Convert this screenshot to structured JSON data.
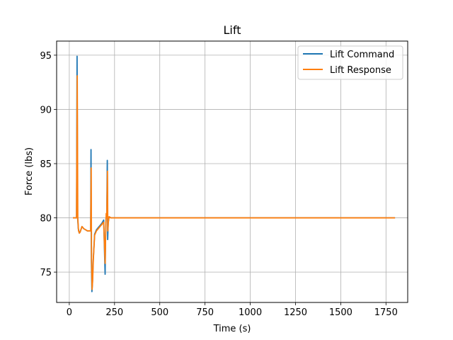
{
  "chart_data": {
    "type": "line",
    "title": "Lift",
    "xlabel": "Time (s)",
    "ylabel": "Force (lbs)",
    "xlim": [
      -70,
      1870
    ],
    "ylim": [
      72.2,
      96.3
    ],
    "xticks": [
      0,
      250,
      500,
      750,
      1000,
      1250,
      1500,
      1750
    ],
    "yticks": [
      75,
      80,
      85,
      90,
      95
    ],
    "grid": true,
    "legend_position": "top-right",
    "series": [
      {
        "name": "Lift Command",
        "color": "#1f77b4",
        "x": [
          20,
          40,
          43,
          46,
          50,
          55,
          60,
          70,
          80,
          90,
          100,
          110,
          118,
          120,
          122,
          125,
          128,
          132,
          140,
          150,
          160,
          170,
          180,
          190,
          198,
          200,
          203,
          207,
          210,
          212,
          215,
          220,
          230,
          240,
          250,
          500,
          1000,
          1500,
          1800
        ],
        "y": [
          80.0,
          80.0,
          94.9,
          80.0,
          79.0,
          78.6,
          78.7,
          79.2,
          79.0,
          78.9,
          78.8,
          78.8,
          78.8,
          86.3,
          76.0,
          73.2,
          74.0,
          76.0,
          78.5,
          78.9,
          79.1,
          79.3,
          79.5,
          79.8,
          74.8,
          78.0,
          80.0,
          80.2,
          85.3,
          78.0,
          79.5,
          80.1,
          80.0,
          80.0,
          80.0,
          80.0,
          80.0,
          80.0,
          80.0
        ]
      },
      {
        "name": "Lift Response",
        "color": "#ff7f0e",
        "x": [
          20,
          40,
          44,
          47,
          51,
          56,
          60,
          70,
          80,
          90,
          100,
          110,
          118,
          121,
          123,
          126,
          129,
          133,
          140,
          150,
          160,
          170,
          180,
          190,
          198,
          201,
          204,
          207,
          211,
          213,
          216,
          220,
          230,
          240,
          250,
          500,
          1000,
          1500,
          1800
        ],
        "y": [
          80.0,
          80.0,
          93.1,
          80.0,
          78.8,
          78.6,
          78.7,
          79.2,
          79.0,
          78.9,
          78.8,
          78.8,
          78.8,
          84.6,
          76.0,
          73.4,
          74.2,
          76.2,
          78.4,
          78.8,
          79.0,
          79.2,
          79.4,
          79.6,
          75.8,
          78.5,
          80.4,
          80.0,
          84.3,
          78.8,
          79.7,
          80.1,
          80.0,
          80.0,
          80.0,
          80.0,
          80.0,
          80.0,
          80.0
        ]
      }
    ]
  }
}
